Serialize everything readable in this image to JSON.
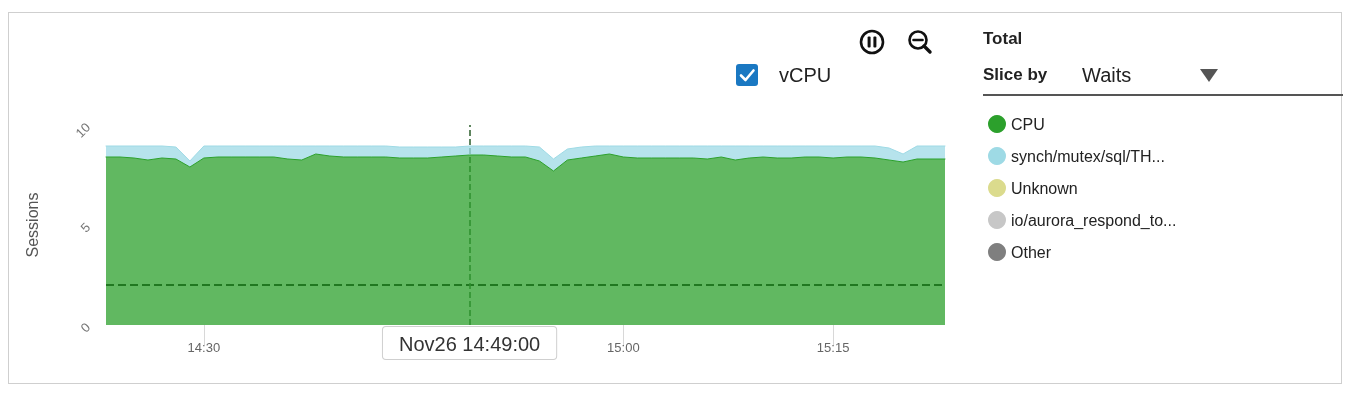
{
  "chart_data": {
    "type": "area",
    "ylabel": "Sessions",
    "legend_title": "Total",
    "annotations": [
      "vCPU",
      "Slice by",
      "Waits"
    ],
    "x": [
      "--11-26T14:23",
      "--11-26T14:24",
      "--11-26T14:25",
      "--11-26T14:26",
      "--11-26T14:27",
      "--11-26T14:28",
      "--11-26T14:29",
      "--11-26T14:30",
      "--11-26T14:31",
      "--11-26T14:32",
      "--11-26T14:33",
      "--11-26T14:34",
      "--11-26T14:35",
      "--11-26T14:36",
      "--11-26T14:37",
      "--11-26T14:38",
      "--11-26T14:39",
      "--11-26T14:40",
      "--11-26T14:41",
      "--11-26T14:42",
      "--11-26T14:43",
      "--11-26T14:44",
      "--11-26T14:45",
      "--11-26T14:46",
      "--11-26T14:47",
      "--11-26T14:48",
      "--11-26T14:49",
      "--11-26T14:50",
      "--11-26T14:51",
      "--11-26T14:52",
      "--11-26T14:53",
      "--11-26T14:54",
      "--11-26T14:55",
      "--11-26T14:56",
      "--11-26T14:57",
      "--11-26T14:58",
      "--11-26T14:59",
      "--11-26T15:00",
      "--11-26T15:01",
      "--11-26T15:02",
      "--11-26T15:03",
      "--11-26T15:04",
      "--11-26T15:05",
      "--11-26T15:06",
      "--11-26T15:07",
      "--11-26T15:08",
      "--11-26T15:09",
      "--11-26T15:10",
      "--11-26T15:11",
      "--11-26T15:12",
      "--11-26T15:13",
      "--11-26T15:14",
      "--11-26T15:15",
      "--11-26T15:16",
      "--11-26T15:17",
      "--11-26T15:18",
      "--11-26T15:19",
      "--11-26T15:20",
      "--11-26T15:21",
      "--11-26T15:22",
      "--11-26T15:23"
    ],
    "xlim": [
      "--11-26T14:23",
      "--11-26T15:23"
    ],
    "xticks": [
      {
        "value": "--11-26T14:30",
        "label": "14:30"
      },
      {
        "value": "--11-26T15:00",
        "label": "15:00"
      },
      {
        "value": "--11-26T15:15",
        "label": "15:15"
      }
    ],
    "ylim": [
      0,
      10
    ],
    "yticks": [
      0,
      5,
      10
    ],
    "stacked": true,
    "grid": false,
    "legend": "right",
    "marker": "none",
    "series": [
      {
        "name": "CPU",
        "color": "#2ca02c",
        "values": [
          8.4,
          8.4,
          8.35,
          8.25,
          8.35,
          8.3,
          7.9,
          8.35,
          8.4,
          8.4,
          8.4,
          8.4,
          8.4,
          8.3,
          8.25,
          8.55,
          8.45,
          8.4,
          8.4,
          8.4,
          8.4,
          8.35,
          8.35,
          8.35,
          8.4,
          8.45,
          8.5,
          8.5,
          8.45,
          8.4,
          8.4,
          8.2,
          7.7,
          8.25,
          8.35,
          8.45,
          8.55,
          8.4,
          8.35,
          8.35,
          8.35,
          8.35,
          8.35,
          8.3,
          8.4,
          8.25,
          8.35,
          8.4,
          8.35,
          8.35,
          8.4,
          8.4,
          8.35,
          8.4,
          8.4,
          8.35,
          8.25,
          8.15,
          8.3,
          8.3,
          8.3
        ]
      },
      {
        "name": "synch/mutex/sql/TH...",
        "color": "#9edae5",
        "values": [
          0.55,
          0.55,
          0.6,
          0.7,
          0.6,
          0.6,
          0.3,
          0.6,
          0.55,
          0.55,
          0.55,
          0.55,
          0.55,
          0.65,
          0.7,
          0.4,
          0.5,
          0.55,
          0.55,
          0.55,
          0.55,
          0.55,
          0.55,
          0.55,
          0.5,
          0.45,
          0.45,
          0.45,
          0.5,
          0.55,
          0.55,
          0.7,
          0.6,
          0.55,
          0.55,
          0.5,
          0.4,
          0.55,
          0.6,
          0.6,
          0.6,
          0.6,
          0.6,
          0.65,
          0.55,
          0.7,
          0.6,
          0.55,
          0.6,
          0.6,
          0.55,
          0.55,
          0.6,
          0.55,
          0.55,
          0.6,
          0.6,
          0.4,
          0.65,
          0.65,
          0.65
        ]
      },
      {
        "name": "Unknown",
        "color": "#dbdb8d",
        "values": [
          null,
          null,
          null,
          null,
          null,
          null,
          null,
          null,
          null,
          null,
          null,
          null,
          null,
          null,
          null,
          null,
          null,
          null,
          null,
          null,
          null,
          null,
          null,
          null,
          null,
          null,
          null,
          null,
          null,
          null,
          null,
          null,
          null,
          null,
          null,
          null,
          null,
          null,
          null,
          null,
          null,
          null,
          null,
          null,
          null,
          null,
          null,
          null,
          null,
          null,
          null,
          null,
          null,
          null,
          null,
          null,
          null,
          null,
          null,
          null,
          null
        ]
      },
      {
        "name": "io/aurora_respond_to...",
        "color": "#c7c7c7",
        "values": [
          null,
          null,
          null,
          null,
          null,
          null,
          null,
          null,
          null,
          null,
          null,
          null,
          null,
          null,
          null,
          null,
          null,
          null,
          null,
          null,
          null,
          null,
          null,
          null,
          null,
          null,
          null,
          null,
          null,
          null,
          null,
          null,
          null,
          null,
          null,
          null,
          null,
          null,
          null,
          null,
          null,
          null,
          null,
          null,
          null,
          null,
          null,
          null,
          null,
          null,
          null,
          null,
          null,
          null,
          null,
          null,
          null,
          null,
          null,
          null,
          null
        ]
      },
      {
        "name": "Other",
        "color": "#7f7f7f",
        "values": [
          null,
          null,
          null,
          null,
          null,
          null,
          null,
          null,
          null,
          null,
          null,
          null,
          null,
          null,
          null,
          null,
          null,
          null,
          null,
          null,
          null,
          null,
          null,
          null,
          null,
          null,
          null,
          null,
          null,
          null,
          null,
          null,
          null,
          null,
          null,
          null,
          null,
          null,
          null,
          null,
          null,
          null,
          null,
          null,
          null,
          null,
          null,
          null,
          null,
          null,
          null,
          null,
          null,
          null,
          null,
          null,
          null,
          null,
          null,
          null,
          null
        ]
      }
    ],
    "ref_lines": [
      {
        "axis": "y",
        "value": 2,
        "color": "#000000",
        "line_style": "dashed"
      },
      {
        "axis": "x",
        "value": "--11-26T14:49",
        "label": "Nov26 14:49:00",
        "color": "#2b5e2b",
        "line_style": "dashed"
      }
    ]
  }
}
